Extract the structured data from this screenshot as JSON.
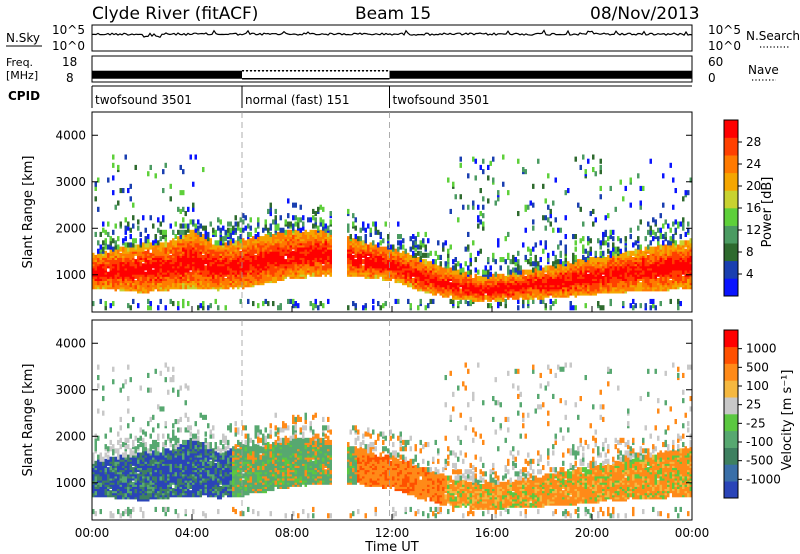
{
  "header": {
    "station": "Clyde River (fitACF)",
    "beam": "Beam 15",
    "date": "08/Nov/2013"
  },
  "chart_data": [
    {
      "type": "line",
      "panel": "noise",
      "left_label": "N.Sky",
      "right_label": "N.Search",
      "y_ticks_left": [
        "10^5",
        "10^0"
      ],
      "y_ticks_right": [
        "10^5",
        "10^0"
      ],
      "note": "noise trace near the top of the 10^0–10^5 range across the full day"
    },
    {
      "type": "line",
      "panel": "frequency",
      "left_label_lines": [
        "Freq.",
        "[MHz]"
      ],
      "right_label": "Nave",
      "y_ticks_left": [
        "18",
        "8"
      ],
      "y_ticks_right": [
        "60",
        "0"
      ],
      "freq_segments": [
        {
          "start_h": 0,
          "end_h": 6.0,
          "freq_mhz": 10.8
        },
        {
          "start_h": 6.0,
          "end_h": 11.9,
          "freq_mhz": 10.8,
          "dotted_top": true
        },
        {
          "start_h": 11.9,
          "end_h": 24,
          "freq_mhz": 10.8
        }
      ]
    },
    {
      "type": "table",
      "panel": "cpid",
      "label": "CPID",
      "segments": [
        {
          "name": "twofsound 3501",
          "start_h": 0,
          "end_h": 6.0
        },
        {
          "name": "normal (fast) 151",
          "start_h": 6.0,
          "end_h": 11.9
        },
        {
          "name": "twofsound 3501",
          "start_h": 11.9,
          "end_h": 24
        }
      ]
    },
    {
      "type": "heatmap",
      "panel": "power",
      "ylabel": "Slant Range [km]",
      "yticks": [
        "1000",
        "2000",
        "3000",
        "4000"
      ],
      "ylim": [
        200,
        4500
      ],
      "colorbar_label": "Power [dB]",
      "colorbar_ticks": [
        "28",
        "24",
        "20",
        "16",
        "12",
        "8",
        "4"
      ],
      "colors": [
        "#0a14ff",
        "#1a3fb0",
        "#2e6a2e",
        "#4b9b62",
        "#5ed03a",
        "#c8d230",
        "#f5a600",
        "#ff7a00",
        "#ff4000",
        "#ff0000"
      ],
      "band_profile": [
        {
          "h": 0.0,
          "lo": 700,
          "hi": 1400
        },
        {
          "h": 1.0,
          "lo": 650,
          "hi": 1500
        },
        {
          "h": 2.0,
          "lo": 600,
          "hi": 1600
        },
        {
          "h": 3.0,
          "lo": 650,
          "hi": 1650
        },
        {
          "h": 4.0,
          "lo": 700,
          "hi": 1900
        },
        {
          "h": 5.0,
          "lo": 650,
          "hi": 1600
        },
        {
          "h": 6.0,
          "lo": 700,
          "hi": 1700
        },
        {
          "h": 7.0,
          "lo": 800,
          "hi": 1800
        },
        {
          "h": 8.0,
          "lo": 900,
          "hi": 1900
        },
        {
          "h": 9.0,
          "lo": 950,
          "hi": 1900
        },
        {
          "h": 10.5,
          "lo": 950,
          "hi": 1700
        },
        {
          "h": 12.0,
          "lo": 850,
          "hi": 1500
        },
        {
          "h": 13.0,
          "lo": 650,
          "hi": 1300
        },
        {
          "h": 14.0,
          "lo": 500,
          "hi": 1100
        },
        {
          "h": 15.5,
          "lo": 400,
          "hi": 900
        },
        {
          "h": 17.0,
          "lo": 450,
          "hi": 1000
        },
        {
          "h": 19.0,
          "lo": 500,
          "hi": 1200
        },
        {
          "h": 21.0,
          "lo": 600,
          "hi": 1400
        },
        {
          "h": 23.0,
          "lo": 650,
          "hi": 1600
        },
        {
          "h": 24.0,
          "lo": 700,
          "hi": 1700
        }
      ]
    },
    {
      "type": "heatmap",
      "panel": "velocity",
      "ylabel": "Slant Range [km]",
      "yticks": [
        "1000",
        "2000",
        "3000",
        "4000"
      ],
      "ylim": [
        200,
        4500
      ],
      "xticks": [
        "00:00",
        "04:00",
        "08:00",
        "12:00",
        "16:00",
        "20:00",
        "00:00"
      ],
      "xlabel": "Time UT",
      "colorbar_label": "Velocity [m s⁻¹]",
      "colorbar_ticks": [
        "1000",
        "500",
        "100",
        "25",
        "-25",
        "-100",
        "-500",
        "-1000"
      ],
      "colors": [
        "#2a44b8",
        "#3a6fa8",
        "#3e8060",
        "#57a870",
        "#5bc840",
        "#c8c8c8",
        "#f5b840",
        "#ff8a18",
        "#ff5000",
        "#ff0000"
      ],
      "band_profile_ref": "power"
    }
  ]
}
